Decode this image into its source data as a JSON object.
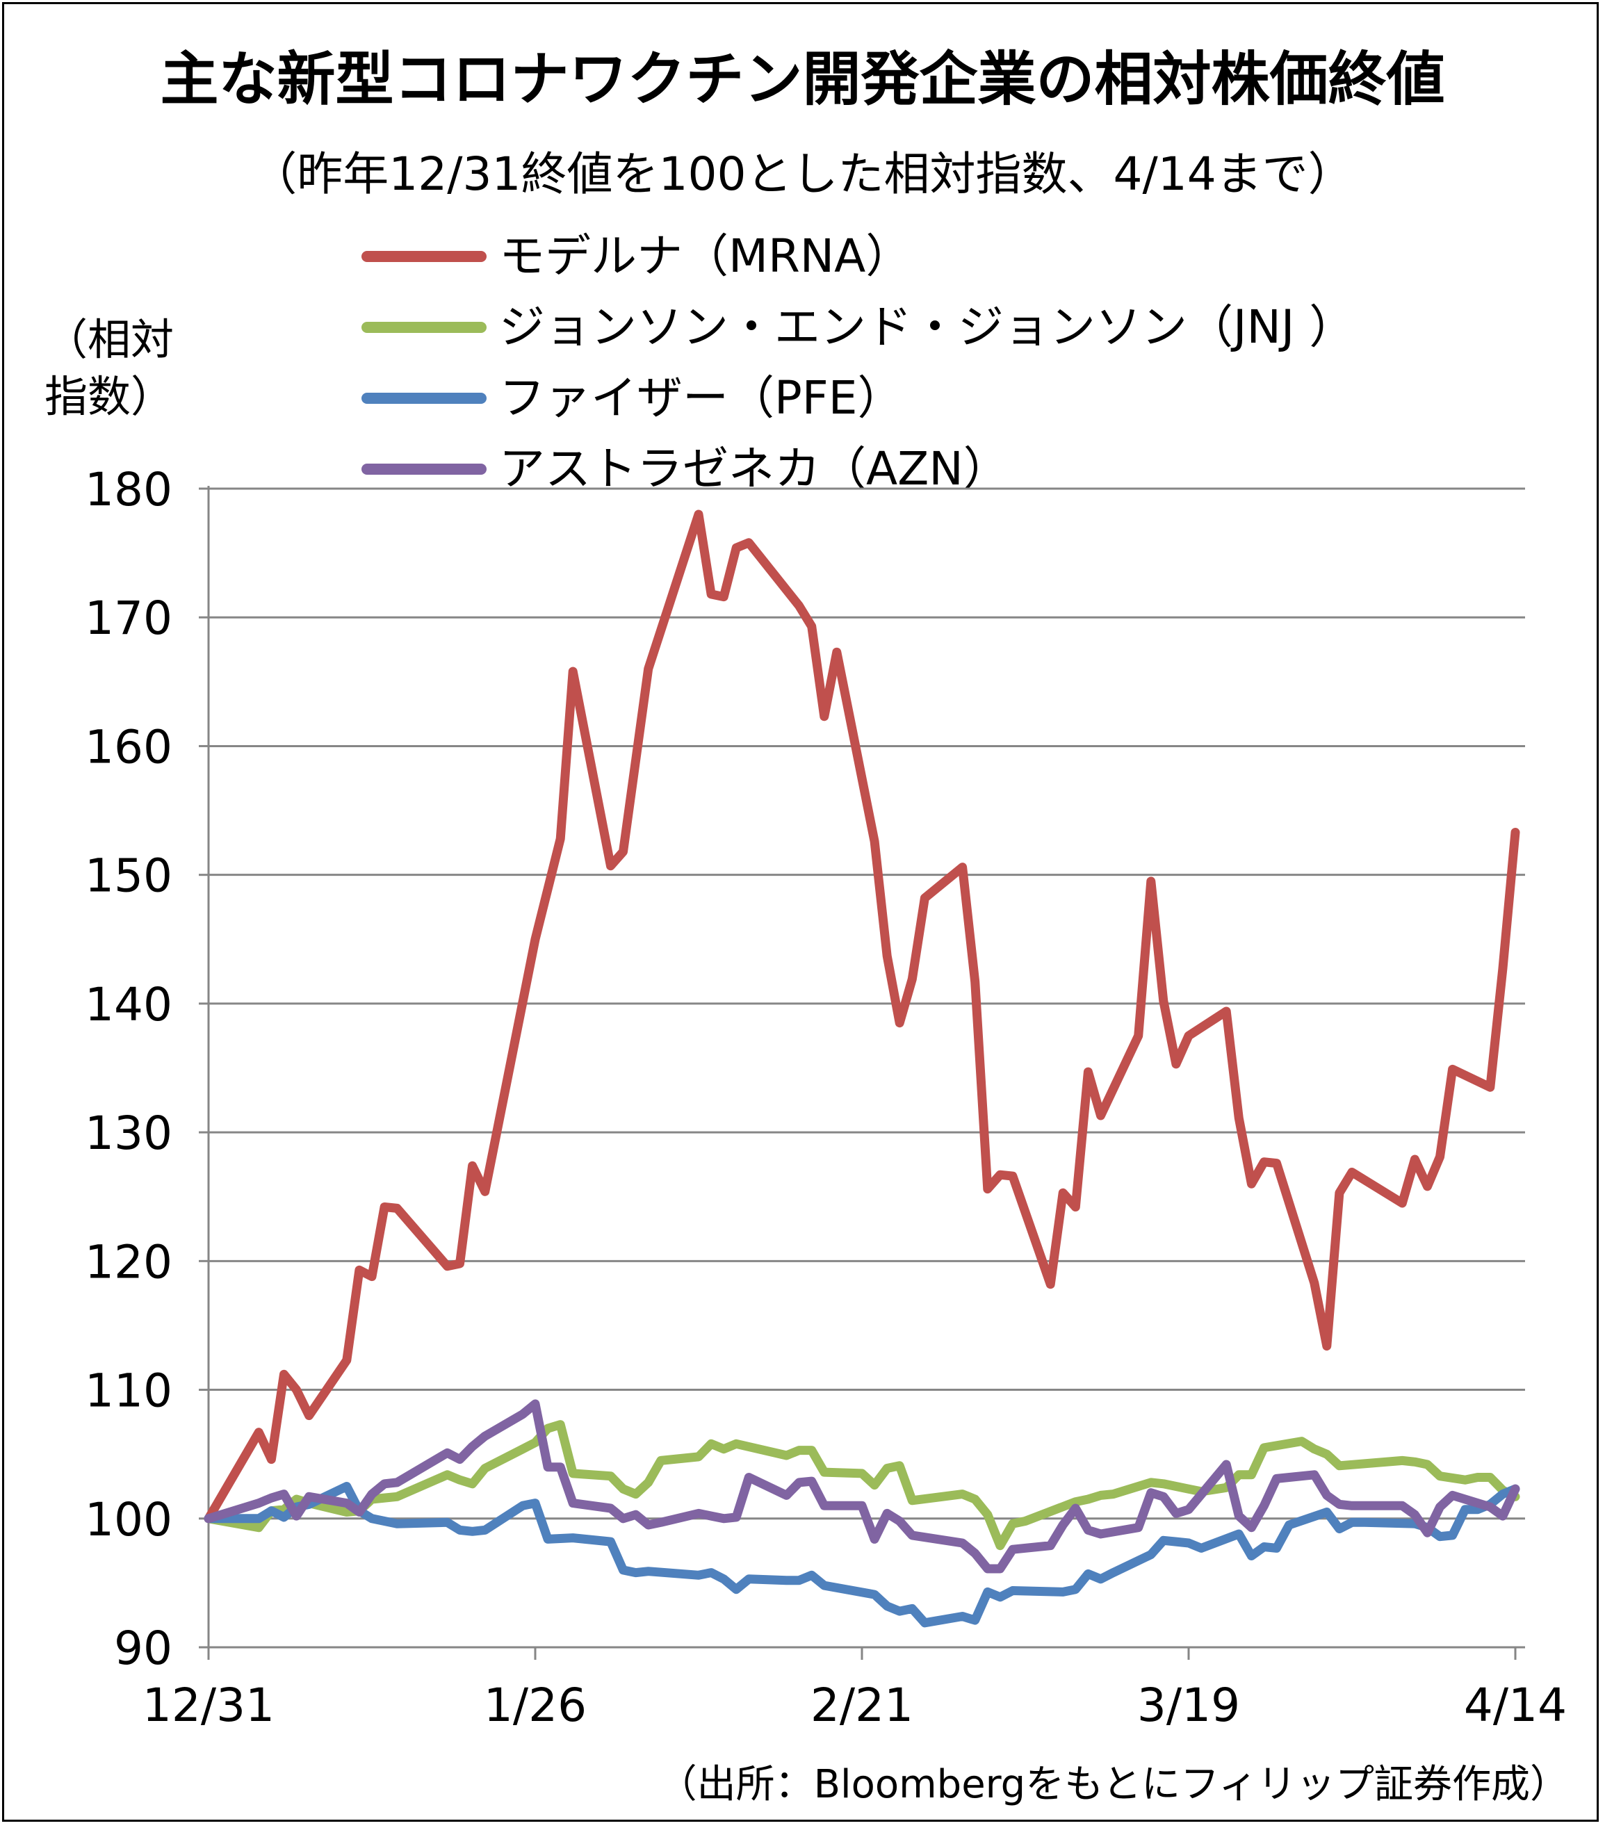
{
  "chart_data": {
    "type": "line",
    "title": "主な新型コロナワクチン開発企業の相対株価終値",
    "subtitle": "（昨年12/31終値を100とした相対指数、4/14まで）",
    "ylabel": "（相対\n指数）",
    "xlabel": "",
    "ylim": [
      90,
      180
    ],
    "yticks": [
      90,
      100,
      110,
      120,
      130,
      140,
      150,
      160,
      170,
      180
    ],
    "xlim": [
      0,
      104
    ],
    "xticks": [
      {
        "x": 0,
        "label": "12/31"
      },
      {
        "x": 26,
        "label": "1/26"
      },
      {
        "x": 52,
        "label": "2/21"
      },
      {
        "x": 78,
        "label": "3/19"
      },
      {
        "x": 104,
        "label": "4/14"
      }
    ],
    "grid": true,
    "legend_position": "top",
    "source": "（出所：Bloombergをもとにフィリップ証券作成）",
    "series": [
      {
        "name": "モデルナ（MRNA）",
        "color": "#c0504d",
        "points": [
          [
            0,
            100
          ],
          [
            4,
            106.7
          ],
          [
            5,
            104.6
          ],
          [
            6,
            111.2
          ],
          [
            7,
            110
          ],
          [
            8,
            108
          ],
          [
            11,
            112.3
          ],
          [
            12,
            119.3
          ],
          [
            13,
            118.8
          ],
          [
            14,
            124.2
          ],
          [
            15,
            124.1
          ],
          [
            19,
            119.6
          ],
          [
            20,
            119.8
          ],
          [
            21,
            127.4
          ],
          [
            22,
            125.4
          ],
          [
            26,
            145
          ],
          [
            28,
            152.8
          ],
          [
            29,
            165.8
          ],
          [
            32,
            150.7
          ],
          [
            33,
            151.8
          ],
          [
            35,
            166
          ],
          [
            39,
            178
          ],
          [
            40,
            171.8
          ],
          [
            41,
            171.6
          ],
          [
            42,
            175.4
          ],
          [
            43,
            175.8
          ],
          [
            47,
            170.9
          ],
          [
            48,
            169.3
          ],
          [
            49,
            162.3
          ],
          [
            50,
            167.3
          ],
          [
            53,
            152.6
          ],
          [
            54,
            143.7
          ],
          [
            55,
            138.5
          ],
          [
            56,
            141.9
          ],
          [
            57,
            148.2
          ],
          [
            60,
            150.6
          ],
          [
            61,
            141.7
          ],
          [
            62,
            125.6
          ],
          [
            63,
            126.7
          ],
          [
            64,
            126.6
          ],
          [
            67,
            118.2
          ],
          [
            68,
            125.3
          ],
          [
            69,
            124.2
          ],
          [
            70,
            134.7
          ],
          [
            71,
            131.3
          ],
          [
            74,
            137.5
          ],
          [
            75,
            149.5
          ],
          [
            76,
            140.2
          ],
          [
            77,
            135.3
          ],
          [
            78,
            137.5
          ],
          [
            81,
            139.4
          ],
          [
            82,
            131.1
          ],
          [
            83,
            126
          ],
          [
            84,
            127.7
          ],
          [
            85,
            127.6
          ],
          [
            88,
            118.3
          ],
          [
            89,
            113.4
          ],
          [
            90,
            125.3
          ],
          [
            91,
            126.9
          ],
          [
            95,
            124.5
          ],
          [
            96,
            127.9
          ],
          [
            97,
            125.8
          ],
          [
            98,
            128.1
          ],
          [
            99,
            134.9
          ],
          [
            102,
            133.5
          ],
          [
            103,
            142.7
          ],
          [
            104,
            153.3
          ]
        ]
      },
      {
        "name": "ジョンソン・エンド・ジョンソン（JNJ ）",
        "color": "#9bbb59",
        "points": [
          [
            0,
            100
          ],
          [
            4,
            99.3
          ],
          [
            5,
            100.6
          ],
          [
            6,
            100.7
          ],
          [
            7,
            101.5
          ],
          [
            8,
            101.2
          ],
          [
            11,
            100.5
          ],
          [
            12,
            100.6
          ],
          [
            13,
            101.5
          ],
          [
            14,
            101.6
          ],
          [
            15,
            101.7
          ],
          [
            19,
            103.4
          ],
          [
            20,
            103
          ],
          [
            21,
            102.7
          ],
          [
            22,
            103.9
          ],
          [
            25,
            105.4
          ],
          [
            26,
            105.9
          ],
          [
            27,
            107
          ],
          [
            28,
            107.3
          ],
          [
            29,
            103.5
          ],
          [
            32,
            103.3
          ],
          [
            33,
            102.3
          ],
          [
            34,
            101.9
          ],
          [
            35,
            102.8
          ],
          [
            36,
            104.5
          ],
          [
            39,
            104.8
          ],
          [
            40,
            105.8
          ],
          [
            41,
            105.4
          ],
          [
            42,
            105.8
          ],
          [
            46,
            104.9
          ],
          [
            47,
            105.3
          ],
          [
            48,
            105.3
          ],
          [
            49,
            103.6
          ],
          [
            52,
            103.5
          ],
          [
            53,
            102.6
          ],
          [
            54,
            103.9
          ],
          [
            55,
            104.1
          ],
          [
            56,
            101.4
          ],
          [
            60,
            101.9
          ],
          [
            61,
            101.5
          ],
          [
            62,
            100.3
          ],
          [
            63,
            97.9
          ],
          [
            64,
            99.6
          ],
          [
            65,
            99.8
          ],
          [
            69,
            101.3
          ],
          [
            70,
            101.5
          ],
          [
            71,
            101.8
          ],
          [
            72,
            101.9
          ],
          [
            75,
            102.8
          ],
          [
            76,
            102.7
          ],
          [
            77,
            102.5
          ],
          [
            78,
            102.3
          ],
          [
            79,
            102.1
          ],
          [
            81,
            102.4
          ],
          [
            82,
            103.4
          ],
          [
            83,
            103.4
          ],
          [
            84,
            105.5
          ],
          [
            87,
            106
          ],
          [
            88,
            105.4
          ],
          [
            89,
            105
          ],
          [
            90,
            104.1
          ],
          [
            95,
            104.5
          ],
          [
            96,
            104.4
          ],
          [
            97,
            104.2
          ],
          [
            98,
            103.3
          ],
          [
            100,
            103
          ],
          [
            101,
            103.2
          ],
          [
            102,
            103.2
          ],
          [
            103,
            102.2
          ],
          [
            104,
            101.7
          ]
        ]
      },
      {
        "name": "ファイザー（PFE）",
        "color": "#4f81bd",
        "points": [
          [
            0,
            100
          ],
          [
            3,
            100
          ],
          [
            4,
            100
          ],
          [
            5,
            100.6
          ],
          [
            6,
            100.1
          ],
          [
            7,
            100.9
          ],
          [
            8,
            101.1
          ],
          [
            11,
            102.5
          ],
          [
            12,
            100.6
          ],
          [
            13,
            100
          ],
          [
            15,
            99.6
          ],
          [
            19,
            99.7
          ],
          [
            20,
            99.1
          ],
          [
            21,
            99
          ],
          [
            22,
            99.1
          ],
          [
            25,
            101
          ],
          [
            26,
            101.2
          ],
          [
            27,
            98.4
          ],
          [
            29,
            98.5
          ],
          [
            32,
            98.2
          ],
          [
            33,
            96
          ],
          [
            34,
            95.8
          ],
          [
            35,
            95.9
          ],
          [
            39,
            95.6
          ],
          [
            40,
            95.8
          ],
          [
            41,
            95.3
          ],
          [
            42,
            94.5
          ],
          [
            43,
            95.3
          ],
          [
            46,
            95.2
          ],
          [
            47,
            95.2
          ],
          [
            48,
            95.6
          ],
          [
            49,
            94.8
          ],
          [
            53,
            94.1
          ],
          [
            54,
            93.2
          ],
          [
            55,
            92.8
          ],
          [
            56,
            93
          ],
          [
            57,
            91.9
          ],
          [
            60,
            92.4
          ],
          [
            61,
            92.1
          ],
          [
            62,
            94.3
          ],
          [
            63,
            93.9
          ],
          [
            64,
            94.4
          ],
          [
            68,
            94.3
          ],
          [
            69,
            94.5
          ],
          [
            70,
            95.7
          ],
          [
            71,
            95.3
          ],
          [
            72,
            95.8
          ],
          [
            75,
            97.2
          ],
          [
            76,
            98.3
          ],
          [
            77,
            98.2
          ],
          [
            78,
            98.1
          ],
          [
            79,
            97.7
          ],
          [
            82,
            98.8
          ],
          [
            83,
            97.1
          ],
          [
            84,
            97.8
          ],
          [
            85,
            97.7
          ],
          [
            86,
            99.5
          ],
          [
            89,
            100.5
          ],
          [
            90,
            99.2
          ],
          [
            91,
            99.7
          ],
          [
            92,
            99.7
          ],
          [
            96,
            99.6
          ],
          [
            97,
            99.3
          ],
          [
            98,
            98.6
          ],
          [
            99,
            98.7
          ],
          [
            100,
            100.7
          ],
          [
            101,
            100.7
          ],
          [
            102,
            101.1
          ],
          [
            103,
            101.9
          ],
          [
            104,
            102.3
          ]
        ]
      },
      {
        "name": "アストラゼネカ（AZN）",
        "color": "#8064a2",
        "points": [
          [
            0,
            100
          ],
          [
            4,
            101.2
          ],
          [
            5,
            101.6
          ],
          [
            6,
            101.9
          ],
          [
            7,
            100.2
          ],
          [
            8,
            101.7
          ],
          [
            11,
            101.2
          ],
          [
            12,
            100.5
          ],
          [
            13,
            101.9
          ],
          [
            14,
            102.7
          ],
          [
            15,
            102.8
          ],
          [
            19,
            105.1
          ],
          [
            20,
            104.6
          ],
          [
            21,
            105.6
          ],
          [
            22,
            106.4
          ],
          [
            25,
            108.1
          ],
          [
            26,
            108.9
          ],
          [
            27,
            104
          ],
          [
            28,
            104
          ],
          [
            29,
            101.2
          ],
          [
            32,
            100.8
          ],
          [
            33,
            100
          ],
          [
            34,
            100.3
          ],
          [
            35,
            99.5
          ],
          [
            36,
            99.7
          ],
          [
            39,
            100.4
          ],
          [
            40,
            100.2
          ],
          [
            41,
            100
          ],
          [
            42,
            100.1
          ],
          [
            43,
            103.2
          ],
          [
            46,
            101.8
          ],
          [
            47,
            102.8
          ],
          [
            48,
            102.9
          ],
          [
            49,
            101
          ],
          [
            52,
            101
          ],
          [
            53,
            98.4
          ],
          [
            54,
            100.4
          ],
          [
            55,
            99.8
          ],
          [
            56,
            98.7
          ],
          [
            60,
            98.1
          ],
          [
            61,
            97.3
          ],
          [
            62,
            96.1
          ],
          [
            63,
            96.1
          ],
          [
            64,
            97.6
          ],
          [
            67,
            97.9
          ],
          [
            68,
            99.5
          ],
          [
            69,
            100.8
          ],
          [
            70,
            99.1
          ],
          [
            71,
            98.8
          ],
          [
            74,
            99.3
          ],
          [
            75,
            102
          ],
          [
            76,
            101.7
          ],
          [
            77,
            100.4
          ],
          [
            78,
            100.7
          ],
          [
            81,
            104.2
          ],
          [
            82,
            100.2
          ],
          [
            83,
            99.3
          ],
          [
            84,
            101
          ],
          [
            85,
            103.1
          ],
          [
            88,
            103.4
          ],
          [
            89,
            101.8
          ],
          [
            90,
            101.1
          ],
          [
            91,
            101
          ],
          [
            95,
            101
          ],
          [
            96,
            100.3
          ],
          [
            97,
            98.9
          ],
          [
            98,
            100.9
          ],
          [
            99,
            101.8
          ],
          [
            102,
            100.9
          ],
          [
            103,
            100.2
          ],
          [
            104,
            102.3
          ]
        ]
      }
    ]
  }
}
